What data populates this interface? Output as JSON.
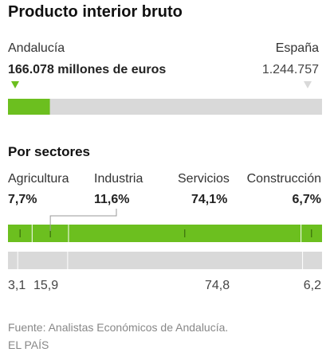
{
  "title": "Producto interior bruto",
  "comparison": {
    "left_label": "Andalucía",
    "left_value_text": "166.078 millones de euros",
    "left_value": 166078,
    "right_label": "España",
    "right_value_text": "1.244.757",
    "right_value": 1244757
  },
  "sectors_title": "Por sectores",
  "source": "Fuente: Analistas Económicos de Andalucía.",
  "credit": "EL PAÍS",
  "colors": {
    "andalucia": "#6cbf1f",
    "spain": "#d9d9d9",
    "marker_left": "#6cbf1f",
    "marker_right": "#d9d9d9"
  },
  "chart_data": [
    {
      "type": "bar",
      "orientation": "horizontal-stacked",
      "title": "Producto interior bruto",
      "categories": [
        "Andalucía",
        "España"
      ],
      "values": [
        166078,
        1244757
      ],
      "unit": "millones de euros"
    },
    {
      "type": "bar",
      "orientation": "horizontal-stacked",
      "title": "Por sectores",
      "categories": [
        "Agricultura",
        "Industria",
        "Servicios",
        "Construcción"
      ],
      "series": [
        {
          "name": "Andalucía",
          "values": [
            7.7,
            11.6,
            74.1,
            6.7
          ],
          "labels": [
            "7,7%",
            "11,6%",
            "74,1%",
            "6,7%"
          ]
        },
        {
          "name": "España",
          "values": [
            3.1,
            15.9,
            74.8,
            6.2
          ],
          "labels": [
            "3,1",
            "15,9",
            "74,8",
            "6,2"
          ]
        }
      ]
    }
  ]
}
